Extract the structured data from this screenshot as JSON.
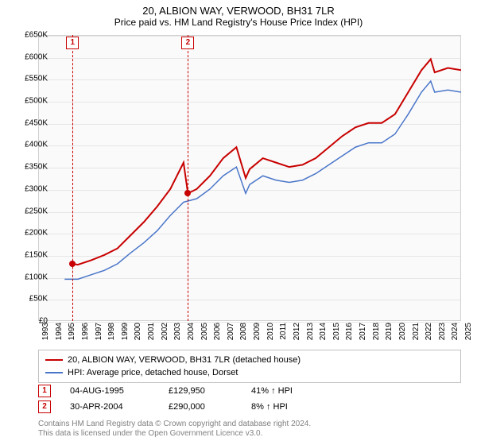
{
  "title": "20, ALBION WAY, VERWOOD, BH31 7LR",
  "subtitle": "Price paid vs. HM Land Registry's House Price Index (HPI)",
  "chart": {
    "type": "line",
    "background_color": "#fafafa",
    "grid_color": "#e6e6e6",
    "border_color": "#d0d0d0",
    "ylim": [
      0,
      650
    ],
    "ytick_step": 50,
    "y_prefix": "£",
    "y_suffix": "K",
    "xlim": [
      1993,
      2025
    ],
    "xtick_step": 1,
    "series": [
      {
        "name": "property",
        "label": "20, ALBION WAY, VERWOOD, BH31 7LR (detached house)",
        "color": "#c80000",
        "line_width": 2,
        "x": [
          1995.6,
          1996,
          1997,
          1998,
          1999,
          2000,
          2001,
          2002,
          2003,
          2004,
          2004.33,
          2005,
          2006,
          2007,
          2008,
          2008.7,
          2009,
          2010,
          2011,
          2012,
          2013,
          2014,
          2015,
          2016,
          2017,
          2018,
          2019,
          2020,
          2021,
          2022,
          2022.7,
          2023,
          2024,
          2025
        ],
        "y": [
          130,
          128,
          138,
          150,
          165,
          195,
          225,
          260,
          300,
          360,
          290,
          300,
          330,
          370,
          395,
          325,
          345,
          370,
          360,
          350,
          355,
          370,
          395,
          420,
          440,
          450,
          450,
          470,
          520,
          570,
          595,
          565,
          575,
          570
        ]
      },
      {
        "name": "hpi",
        "label": "HPI: Average price, detached house, Dorset",
        "color": "#4a76c9",
        "line_width": 1.5,
        "x": [
          1995,
          1996,
          1997,
          1998,
          1999,
          2000,
          2001,
          2002,
          2003,
          2004,
          2005,
          2006,
          2007,
          2008,
          2008.7,
          2009,
          2010,
          2011,
          2012,
          2013,
          2014,
          2015,
          2016,
          2017,
          2018,
          2019,
          2020,
          2021,
          2022,
          2022.7,
          2023,
          2024,
          2025
        ],
        "y": [
          95,
          95,
          105,
          115,
          130,
          155,
          178,
          205,
          240,
          270,
          278,
          300,
          330,
          350,
          290,
          310,
          330,
          320,
          315,
          320,
          335,
          355,
          375,
          395,
          405,
          405,
          425,
          470,
          520,
          545,
          520,
          525,
          520
        ]
      }
    ],
    "sale_markers": [
      {
        "n": "1",
        "x": 1995.6,
        "y": 130
      },
      {
        "n": "2",
        "x": 2004.33,
        "y": 290
      }
    ]
  },
  "legend_colors": {
    "property": "#c80000",
    "hpi": "#4a76c9"
  },
  "sales": [
    {
      "n": "1",
      "date": "04-AUG-1995",
      "price": "£129,950",
      "diff": "41% ↑ HPI"
    },
    {
      "n": "2",
      "date": "30-APR-2004",
      "price": "£290,000",
      "diff": "8% ↑ HPI"
    }
  ],
  "footer1": "Contains HM Land Registry data © Crown copyright and database right 2024.",
  "footer2": "This data is licensed under the Open Government Licence v3.0."
}
